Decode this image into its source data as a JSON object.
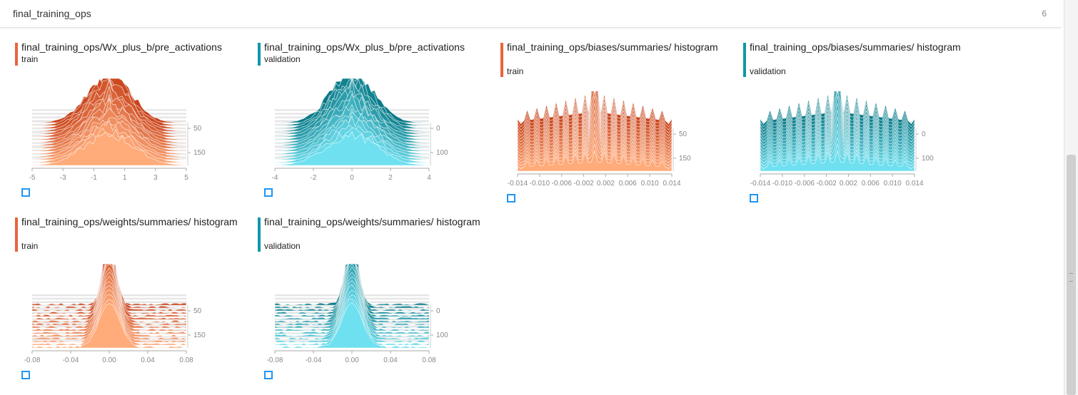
{
  "header": {
    "title": "final_training_ops",
    "count": "6"
  },
  "colors": {
    "train": "#e8643c",
    "validation": "#1197a8"
  },
  "icons": {
    "expand": "expand-icon"
  },
  "cards": [
    {
      "name": "final_training_ops/Wx_plus_b/pre_activations",
      "run": "train",
      "xticks": [
        "-5",
        "-3",
        "-1",
        "1",
        "3",
        "5"
      ],
      "yticks": [
        "50",
        "150"
      ]
    },
    {
      "name": "final_training_ops/Wx_plus_b/pre_activations",
      "run": "validation",
      "xticks": [
        "-4",
        "-2",
        "0",
        "2",
        "4"
      ],
      "yticks": [
        "0",
        "100"
      ]
    },
    {
      "name": "final_training_ops/biases/summaries/ histogram",
      "run": "train",
      "xticks": [
        "-0.014",
        "-0.010",
        "-0.006",
        "-0.002",
        "0.002",
        "0.006",
        "0.010",
        "0.014"
      ],
      "yticks": [
        "50",
        "150"
      ]
    },
    {
      "name": "final_training_ops/biases/summaries/ histogram",
      "run": "validation",
      "xticks": [
        "-0.014",
        "-0.010",
        "-0.006",
        "-0.002",
        "0.002",
        "0.006",
        "0.010",
        "0.014"
      ],
      "yticks": [
        "0",
        "100"
      ]
    },
    {
      "name": "final_training_ops/weights/summaries/ histogram",
      "run": "train",
      "xticks": [
        "-0.08",
        "-0.04",
        "0.00",
        "0.04",
        "0.08"
      ],
      "yticks": [
        "50",
        "150"
      ]
    },
    {
      "name": "final_training_ops/weights/summaries/ histogram",
      "run": "validation",
      "xticks": [
        "-0.08",
        "-0.04",
        "0.00",
        "0.04",
        "0.08"
      ],
      "yticks": [
        "0",
        "100"
      ]
    }
  ]
}
